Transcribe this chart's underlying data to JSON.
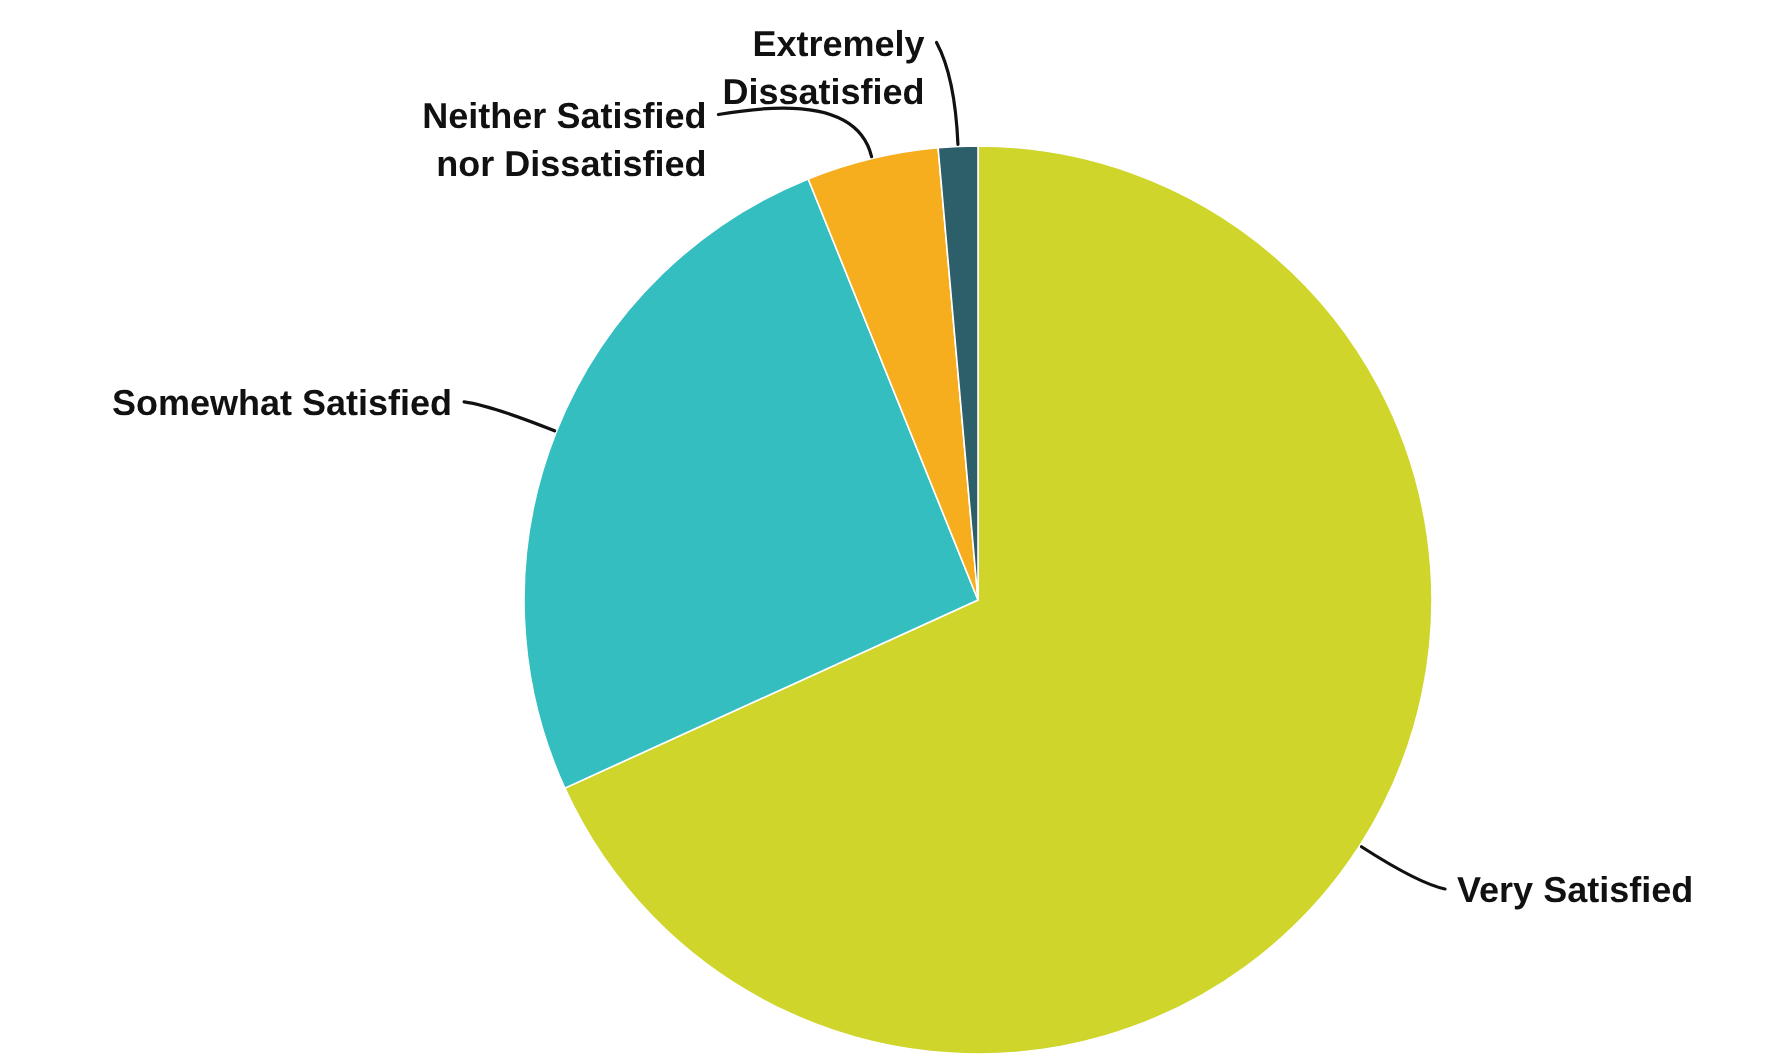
{
  "chart_data": {
    "type": "pie",
    "categories": [
      "Very Satisfied",
      "Somewhat Satisfied",
      "Neither Satisfied nor Dissatisfied",
      "Extremely Dissatisfied"
    ],
    "values": [
      68.2,
      25.7,
      4.7,
      1.4
    ],
    "colors": [
      "#cfd52a",
      "#35bec0",
      "#f6ae1f",
      "#2d5f6b"
    ]
  }
}
